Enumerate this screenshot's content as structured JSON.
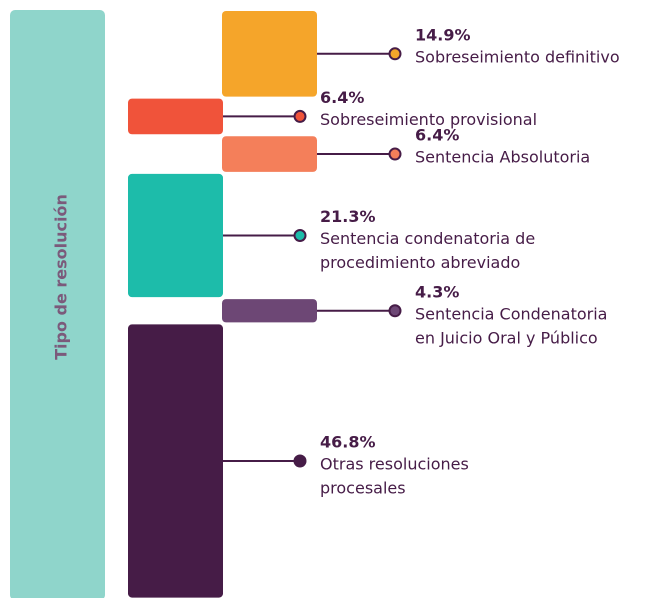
{
  "chart_data": {
    "type": "stacked-column",
    "axis_label": "Tipo de resolución",
    "categories": [
      [
        "Sobreseimiento definitivo"
      ],
      [
        "Sobreseimiento provisional"
      ],
      [
        "Sentencia Absolutoria"
      ],
      [
        "Sentencia condenatoria de",
        "procedimiento abreviado"
      ],
      [
        "Sentencia Condenatoria",
        "en Juicio Oral y Público"
      ],
      [
        "Otras resoluciones",
        "procesales"
      ]
    ],
    "values": [
      14.9,
      6.4,
      6.4,
      21.3,
      4.3,
      46.8
    ],
    "value_labels": [
      "14.9%",
      "6.4%",
      "6.4%",
      "21.3%",
      "4.3%",
      "46.8%"
    ],
    "colors": [
      "#f5a52a",
      "#f0533a",
      "#f47f5a",
      "#1dbcaa",
      "#6d4775",
      "#461c47"
    ],
    "ylim": [
      0,
      100
    ]
  }
}
